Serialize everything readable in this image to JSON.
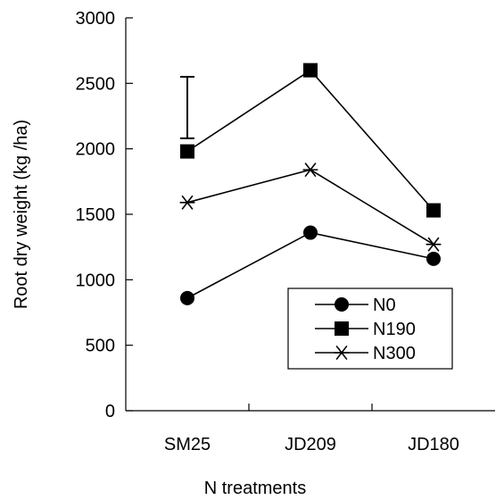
{
  "chart_data": {
    "type": "line",
    "xlabel": "N treatments",
    "ylabel": "Root dry weight (kg /ha)",
    "categories": [
      "SM25",
      "JD209",
      "JD180"
    ],
    "ylim": [
      0,
      3000
    ],
    "yticks": [
      "0",
      "500",
      "1000",
      "1500",
      "2000",
      "2500",
      "3000"
    ],
    "series": [
      {
        "name": "N0",
        "marker": "circle",
        "values": [
          860,
          1360,
          1160
        ]
      },
      {
        "name": "N190",
        "marker": "square",
        "values": [
          1980,
          2600,
          1530
        ]
      },
      {
        "name": "N300",
        "marker": "asterisk",
        "values": [
          1590,
          1840,
          1270
        ]
      }
    ],
    "error_bar": {
      "category": "SM25",
      "low": 2080,
      "high": 2550
    },
    "legend_position": "lower-right",
    "grid": false
  }
}
